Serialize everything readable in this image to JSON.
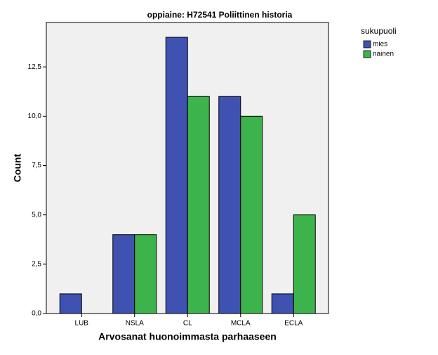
{
  "chart_data": {
    "type": "bar",
    "title": "oppiaine: H72541 Poliittinen historia",
    "x_label": "Arvosanat huonoimmasta parhaaseen",
    "y_label": "Count",
    "categories": [
      "LUB",
      "NSLA",
      "CL",
      "MCLA",
      "ECLA"
    ],
    "series": [
      {
        "name": "mies",
        "color": "#3f51b1",
        "values": [
          1,
          4,
          14,
          11,
          1
        ]
      },
      {
        "name": "nainen",
        "color": "#3cb44b",
        "values": [
          0,
          4,
          11,
          10,
          5
        ]
      }
    ],
    "legend_title": "sukupuoli",
    "legend": "right",
    "ylim": [
      0,
      14.75
    ],
    "yticks": [
      {
        "value": 0,
        "label": "0,0"
      },
      {
        "value": 2.5,
        "label": "2,5"
      },
      {
        "value": 5,
        "label": "5,0"
      },
      {
        "value": 7.5,
        "label": "7,5"
      },
      {
        "value": 10,
        "label": "10,0"
      },
      {
        "value": 12.5,
        "label": "12,5"
      }
    ]
  }
}
